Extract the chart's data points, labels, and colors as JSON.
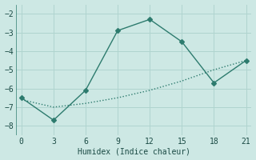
{
  "line1_x": [
    0,
    3,
    6,
    9,
    12,
    15,
    18,
    21
  ],
  "line1_y": [
    -6.5,
    -7.7,
    -6.1,
    -2.9,
    -2.3,
    -3.5,
    -5.7,
    -4.5
  ],
  "line2_x": [
    0,
    3,
    6,
    9,
    12,
    15,
    18,
    21
  ],
  "line2_y": [
    -6.6,
    -7.0,
    -6.8,
    -6.5,
    -6.1,
    -5.6,
    -5.0,
    -4.5
  ],
  "color": "#2d7b6e",
  "bg_color": "#cde8e4",
  "grid_color": "#b0d4cf",
  "xlabel": "Humidex (Indice chaleur)",
  "xlim": [
    -0.5,
    21.5
  ],
  "ylim": [
    -8.5,
    -1.5
  ],
  "xticks": [
    0,
    3,
    6,
    9,
    12,
    15,
    18,
    21
  ],
  "yticks": [
    -8,
    -7,
    -6,
    -5,
    -4,
    -3,
    -2
  ],
  "marker": "D",
  "markersize": 3,
  "linewidth": 1.0
}
